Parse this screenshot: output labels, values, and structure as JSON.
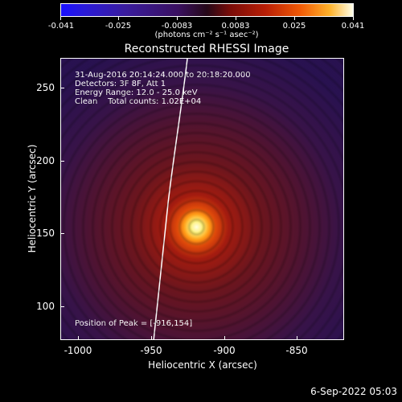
{
  "colorbar": {
    "tick_labels": [
      "-0.041",
      "-0.025",
      "-0.0083",
      "0.0083",
      "0.025",
      "0.041"
    ],
    "unit_label": "(photons cm⁻² s⁻¹ asec⁻²)"
  },
  "image": {
    "title": "Reconstructed RHESSI Image",
    "info_lines": [
      "31-Aug-2016 20:14:24.000 to 20:18:20.000",
      "Detectors: 3F 8F, Att 1",
      "Energy Range: 12.0 - 25.0 keV",
      "Clean    Total counts: 1.02E+04"
    ],
    "peak_label": "Position of Peak = [-916,154]"
  },
  "axes": {
    "x_label": "Heliocentric X (arcsec)",
    "y_label": "Heliocentric Y (arcsec)",
    "x_ticks": [
      "-1000",
      "-950",
      "-900",
      "-850"
    ],
    "y_ticks": [
      "250",
      "200",
      "150",
      "100"
    ]
  },
  "footer": {
    "date": "6-Sep-2022 05:03"
  }
}
